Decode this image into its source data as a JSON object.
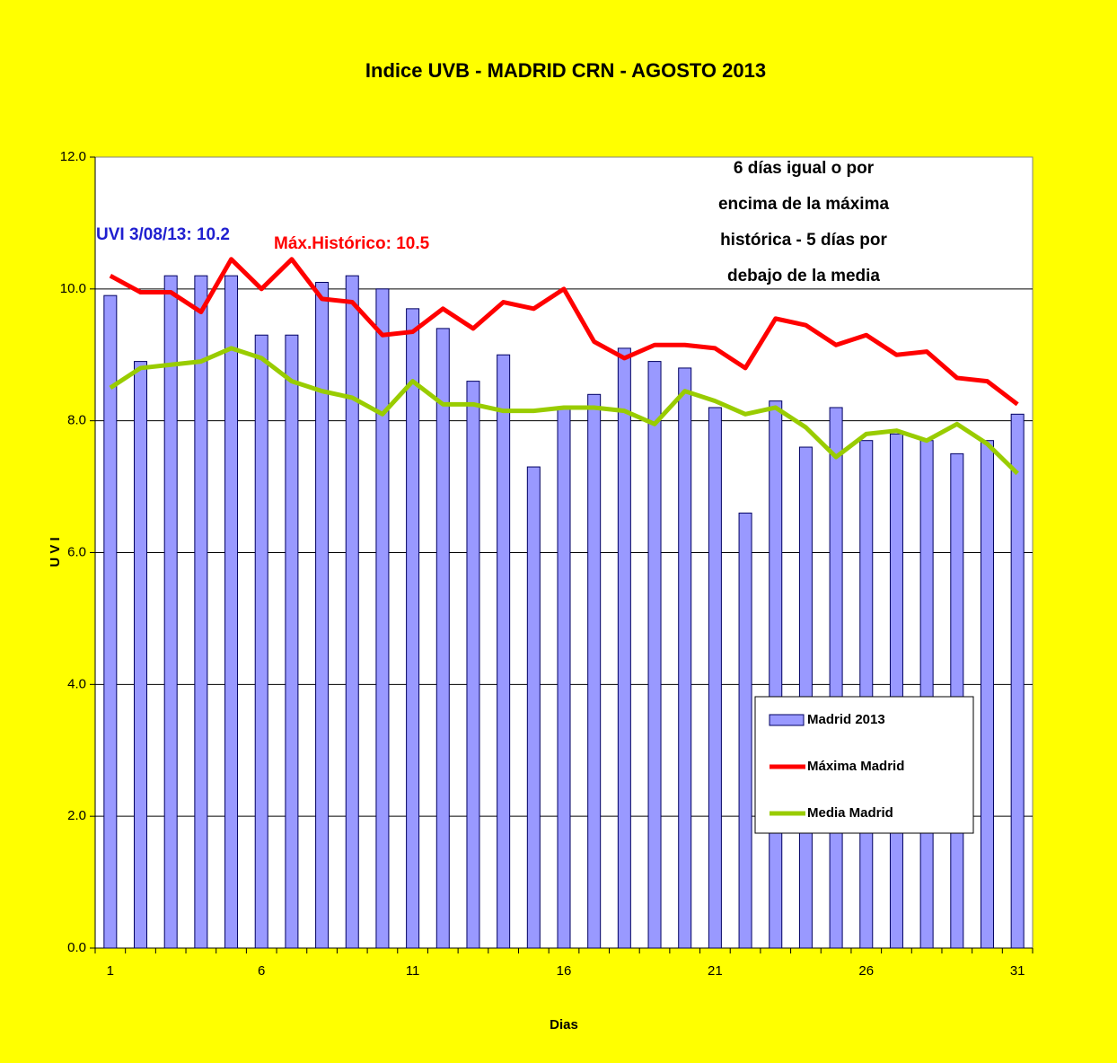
{
  "chart_data": {
    "type": "bar",
    "title": "Indice UVB -  MADRID CRN -  AGOSTO  2013",
    "x_label": "Dias",
    "y_label": "U V I",
    "categories": [
      "1",
      null,
      null,
      null,
      null,
      "6",
      null,
      null,
      null,
      null,
      "11",
      null,
      null,
      null,
      null,
      "16",
      null,
      null,
      null,
      null,
      "21",
      null,
      null,
      null,
      null,
      "26",
      null,
      null,
      null,
      null,
      "31"
    ],
    "series": [
      {
        "name": "Madrid 2013",
        "type": "bar",
        "color": "#9999ff",
        "values": [
          9.9,
          8.9,
          10.2,
          10.2,
          10.2,
          9.3,
          9.3,
          10.1,
          10.2,
          10.0,
          9.7,
          9.4,
          8.6,
          9.0,
          7.3,
          8.2,
          8.4,
          9.1,
          8.9,
          8.8,
          8.2,
          6.6,
          8.3,
          7.6,
          8.2,
          7.7,
          7.8,
          7.7,
          7.5,
          7.7,
          8.1
        ]
      },
      {
        "name": "Máxima Madrid",
        "type": "line",
        "color": "#ff0000",
        "values": [
          10.2,
          9.95,
          9.95,
          9.65,
          10.45,
          10.0,
          10.45,
          9.85,
          9.8,
          9.3,
          9.35,
          9.7,
          9.4,
          9.8,
          9.7,
          10.0,
          9.2,
          8.95,
          9.15,
          9.15,
          9.1,
          8.8,
          9.55,
          9.45,
          9.15,
          9.3,
          9.0,
          9.05,
          8.65,
          8.6,
          8.25
        ]
      },
      {
        "name": "Media Madrid",
        "type": "line",
        "color": "#99cc00",
        "values": [
          8.5,
          8.8,
          8.85,
          8.9,
          9.1,
          8.95,
          8.6,
          8.45,
          8.35,
          8.1,
          8.6,
          8.25,
          8.25,
          8.15,
          8.15,
          8.2,
          8.2,
          8.15,
          7.95,
          8.45,
          8.3,
          8.1,
          8.2,
          7.9,
          7.45,
          7.8,
          7.85,
          7.7,
          7.95,
          7.65,
          7.2
        ]
      }
    ],
    "ylim": [
      0,
      12
    ],
    "yticks": [
      {
        "value": 0,
        "label": "0.0"
      },
      {
        "value": 2,
        "label": "2.0"
      },
      {
        "value": 4,
        "label": "4.0"
      },
      {
        "value": 6,
        "label": "6.0"
      },
      {
        "value": 8,
        "label": "8.0"
      },
      {
        "value": 10,
        "label": "10.0"
      },
      {
        "value": 12,
        "label": "12.0"
      }
    ],
    "grid": true,
    "legend_position": "lower right",
    "annotations": [
      {
        "text": "UVI  3/08/13: 10.2",
        "color": "#2020d0"
      },
      {
        "text": "Máx.Histórico: 10.5",
        "color": "#ff0000"
      },
      {
        "lines": [
          "6 días igual o por",
          "encima de la máxima",
          "histórica - 5 días por",
          "debajo de la media"
        ],
        "color": "#000000"
      }
    ]
  }
}
